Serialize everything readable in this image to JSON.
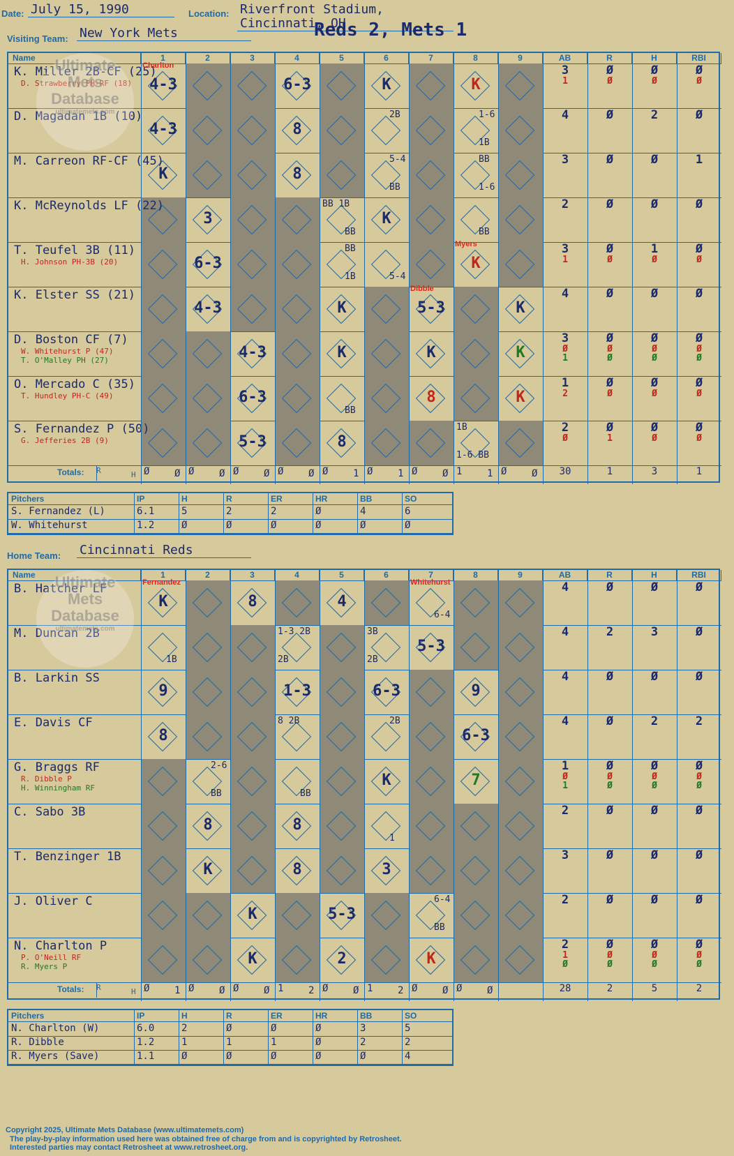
{
  "header": {
    "date_label": "Date:",
    "date": "July 15, 1990",
    "location_label": "Location:",
    "location": "Riverfront Stadium, Cincinnati, OH",
    "visiting_label": "Visiting Team:",
    "visiting_team": "New York Mets",
    "home_label": "Home Team:",
    "home_team": "Cincinnati Reds",
    "result": "Reds 2, Mets 1"
  },
  "columns": {
    "name": "Name",
    "innings": [
      "1",
      "2",
      "3",
      "4",
      "5",
      "6",
      "7",
      "8",
      "9"
    ],
    "stats": [
      "AB",
      "R",
      "H",
      "RBI"
    ]
  },
  "totals_label": "Totals:",
  "totals_r": "R",
  "totals_h": "H",
  "visitors": {
    "players": [
      {
        "name": "K. Miller 2B-CF (25)",
        "subs": [
          {
            "text": "D. Strawberry PH-RF (18)",
            "c": "red"
          }
        ],
        "stats": [
          [
            "3",
            "1"
          ],
          [
            "Ø",
            "Ø"
          ],
          [
            "Ø",
            "Ø"
          ],
          [
            "Ø",
            "Ø"
          ]
        ]
      },
      {
        "name": "D. Magadan 1B (10)",
        "subs": [],
        "stats": [
          [
            "4"
          ],
          [
            "Ø"
          ],
          [
            "2"
          ],
          [
            "Ø"
          ]
        ]
      },
      {
        "name": "M. Carreon RF-CF (45)",
        "subs": [],
        "stats": [
          [
            "3"
          ],
          [
            "Ø"
          ],
          [
            "Ø"
          ],
          [
            "1"
          ]
        ]
      },
      {
        "name": "K. McReynolds LF (22)",
        "subs": [],
        "stats": [
          [
            "2"
          ],
          [
            "Ø"
          ],
          [
            "Ø"
          ],
          [
            "Ø"
          ]
        ]
      },
      {
        "name": "T. Teufel 3B (11)",
        "subs": [
          {
            "text": "H. Johnson PH-3B (20)",
            "c": "red"
          }
        ],
        "stats": [
          [
            "3",
            "1"
          ],
          [
            "Ø",
            "Ø"
          ],
          [
            "1",
            "Ø"
          ],
          [
            "Ø",
            "Ø"
          ]
        ]
      },
      {
        "name": "K. Elster SS (21)",
        "subs": [],
        "stats": [
          [
            "4"
          ],
          [
            "Ø"
          ],
          [
            "Ø"
          ],
          [
            "Ø"
          ]
        ]
      },
      {
        "name": "D. Boston CF (7)",
        "subs": [
          {
            "text": "W. Whitehurst P (47)",
            "c": "red"
          },
          {
            "text": "T. O'Malley PH (27)",
            "c": "grn"
          }
        ],
        "stats": [
          [
            "3",
            "Ø",
            "1"
          ],
          [
            "Ø",
            "Ø",
            "Ø"
          ],
          [
            "Ø",
            "Ø",
            "Ø"
          ],
          [
            "Ø",
            "Ø",
            "Ø"
          ]
        ]
      },
      {
        "name": "O. Mercado C (35)",
        "subs": [
          {
            "text": "T. Hundley PH-C (49)",
            "c": "red"
          }
        ],
        "stats": [
          [
            "1",
            "2"
          ],
          [
            "Ø",
            "Ø"
          ],
          [
            "Ø",
            "Ø"
          ],
          [
            "Ø",
            "Ø"
          ]
        ]
      },
      {
        "name": "S. Fernandez P (50)",
        "subs": [
          {
            "text": "G. Jefferies 2B (9)",
            "c": "red"
          }
        ],
        "stats": [
          [
            "2",
            "Ø"
          ],
          [
            "Ø",
            "1"
          ],
          [
            "Ø",
            "Ø"
          ],
          [
            "Ø",
            "Ø"
          ]
        ]
      }
    ],
    "plays": [
      {
        "r": 0,
        "i": 0,
        "t": "4-3"
      },
      {
        "r": 0,
        "i": 3,
        "t": "6-3"
      },
      {
        "r": 0,
        "i": 5,
        "t": "K"
      },
      {
        "r": 0,
        "i": 7,
        "t": "K",
        "c": "red"
      },
      {
        "r": 1,
        "i": 0,
        "t": "4-3"
      },
      {
        "r": 1,
        "i": 3,
        "t": "8"
      },
      {
        "r": 2,
        "i": 0,
        "t": "K"
      },
      {
        "r": 2,
        "i": 3,
        "t": "8"
      },
      {
        "r": 3,
        "i": 1,
        "t": "3"
      },
      {
        "r": 3,
        "i": 5,
        "t": "K"
      },
      {
        "r": 4,
        "i": 1,
        "t": "6-3"
      },
      {
        "r": 4,
        "i": 7,
        "t": "K",
        "c": "red"
      },
      {
        "r": 5,
        "i": 1,
        "t": "4-3"
      },
      {
        "r": 5,
        "i": 4,
        "t": "K"
      },
      {
        "r": 5,
        "i": 6,
        "t": "5-3"
      },
      {
        "r": 5,
        "i": 8,
        "t": "K"
      },
      {
        "r": 6,
        "i": 2,
        "t": "4-3"
      },
      {
        "r": 6,
        "i": 4,
        "t": "K"
      },
      {
        "r": 6,
        "i": 6,
        "t": "K"
      },
      {
        "r": 6,
        "i": 8,
        "t": "K",
        "c": "grn"
      },
      {
        "r": 7,
        "i": 2,
        "t": "6-3"
      },
      {
        "r": 7,
        "i": 6,
        "t": "8",
        "c": "red"
      },
      {
        "r": 7,
        "i": 8,
        "t": "K",
        "c": "red"
      },
      {
        "r": 8,
        "i": 2,
        "t": "5-3"
      },
      {
        "r": 8,
        "i": 4,
        "t": "8"
      }
    ],
    "minis": [
      {
        "r": 1,
        "i": 5,
        "t": "2B",
        "pos": "tr"
      },
      {
        "r": 1,
        "i": 7,
        "t": "1-6",
        "pos": "tr"
      },
      {
        "r": 1,
        "i": 7,
        "t": "1B",
        "pos": "br"
      },
      {
        "r": 2,
        "i": 5,
        "t": "5-4",
        "pos": "tr"
      },
      {
        "r": 2,
        "i": 5,
        "t": "BB",
        "pos": "br"
      },
      {
        "r": 2,
        "i": 7,
        "t": "BB",
        "pos": "tr"
      },
      {
        "r": 2,
        "i": 7,
        "t": "1-6",
        "pos": "br"
      },
      {
        "r": 3,
        "i": 4,
        "t": "BB 1B",
        "pos": "tl"
      },
      {
        "r": 3,
        "i": 4,
        "t": "BB",
        "pos": "br"
      },
      {
        "r": 3,
        "i": 7,
        "t": "BB",
        "pos": "br"
      },
      {
        "r": 4,
        "i": 4,
        "t": "BB",
        "pos": "tr"
      },
      {
        "r": 4,
        "i": 4,
        "t": "1B",
        "pos": "br"
      },
      {
        "r": 4,
        "i": 5,
        "t": "5-4",
        "pos": "br"
      },
      {
        "r": 7,
        "i": 4,
        "t": "BB",
        "pos": "br"
      },
      {
        "r": 8,
        "i": 7,
        "t": "1B",
        "pos": "tl"
      },
      {
        "r": 8,
        "i": 7,
        "t": "1-6 BB",
        "pos": "bl"
      }
    ],
    "pitch_changes": [
      {
        "r": 0,
        "i": 0,
        "t": "Charlton"
      },
      {
        "r": 4,
        "i": 7,
        "t": "Myers"
      },
      {
        "r": 5,
        "i": 6,
        "t": "Dibble"
      }
    ],
    "totals": [
      [
        "Ø",
        "Ø"
      ],
      [
        "Ø",
        "Ø"
      ],
      [
        "Ø",
        "Ø"
      ],
      [
        "Ø",
        "Ø"
      ],
      [
        "Ø",
        "1"
      ],
      [
        "Ø",
        "1"
      ],
      [
        "Ø",
        "Ø"
      ],
      [
        "1",
        "1"
      ],
      [
        "Ø",
        "Ø"
      ]
    ],
    "total_stats": [
      "30",
      "1",
      "3",
      "1"
    ]
  },
  "home": {
    "players": [
      {
        "name": "B. Hatcher LF",
        "subs": [],
        "stats": [
          [
            "4"
          ],
          [
            "Ø"
          ],
          [
            "Ø"
          ],
          [
            "Ø"
          ]
        ]
      },
      {
        "name": "M. Duncan 2B",
        "subs": [],
        "stats": [
          [
            "4"
          ],
          [
            "2"
          ],
          [
            "3"
          ],
          [
            "Ø"
          ]
        ]
      },
      {
        "name": "B. Larkin SS",
        "subs": [],
        "stats": [
          [
            "4"
          ],
          [
            "Ø"
          ],
          [
            "Ø"
          ],
          [
            "Ø"
          ]
        ]
      },
      {
        "name": "E. Davis CF",
        "subs": [],
        "stats": [
          [
            "4"
          ],
          [
            "Ø"
          ],
          [
            "2"
          ],
          [
            "2"
          ]
        ]
      },
      {
        "name": "G. Braggs RF",
        "subs": [
          {
            "text": "R. Dibble P",
            "c": "red"
          },
          {
            "text": "H. Winningham RF",
            "c": "grn"
          }
        ],
        "stats": [
          [
            "1",
            "Ø",
            "1"
          ],
          [
            "Ø",
            "Ø",
            "Ø"
          ],
          [
            "Ø",
            "Ø",
            "Ø"
          ],
          [
            "Ø",
            "Ø",
            "Ø"
          ]
        ]
      },
      {
        "name": "C. Sabo 3B",
        "subs": [],
        "stats": [
          [
            "2"
          ],
          [
            "Ø"
          ],
          [
            "Ø"
          ],
          [
            "Ø"
          ]
        ]
      },
      {
        "name": "T. Benzinger 1B",
        "subs": [],
        "stats": [
          [
            "3"
          ],
          [
            "Ø"
          ],
          [
            "Ø"
          ],
          [
            "Ø"
          ]
        ]
      },
      {
        "name": "J. Oliver C",
        "subs": [],
        "stats": [
          [
            "2"
          ],
          [
            "Ø"
          ],
          [
            "Ø"
          ],
          [
            "Ø"
          ]
        ]
      },
      {
        "name": "N. Charlton P",
        "subs": [
          {
            "text": "P. O'Neill RF",
            "c": "red"
          },
          {
            "text": "R. Myers P",
            "c": "grn"
          }
        ],
        "stats": [
          [
            "2",
            "1",
            "Ø"
          ],
          [
            "Ø",
            "Ø",
            "Ø"
          ],
          [
            "Ø",
            "Ø",
            "Ø"
          ],
          [
            "Ø",
            "Ø",
            "Ø"
          ]
        ]
      }
    ],
    "plays": [
      {
        "r": 0,
        "i": 0,
        "t": "K"
      },
      {
        "r": 0,
        "i": 2,
        "t": "8"
      },
      {
        "r": 0,
        "i": 4,
        "t": "4"
      },
      {
        "r": 1,
        "i": 6,
        "t": "5-3"
      },
      {
        "r": 2,
        "i": 0,
        "t": "9"
      },
      {
        "r": 2,
        "i": 3,
        "t": "1-3"
      },
      {
        "r": 2,
        "i": 5,
        "t": "6-3"
      },
      {
        "r": 2,
        "i": 7,
        "t": "9"
      },
      {
        "r": 3,
        "i": 0,
        "t": "8"
      },
      {
        "r": 3,
        "i": 7,
        "t": "6-3"
      },
      {
        "r": 4,
        "i": 5,
        "t": "K"
      },
      {
        "r": 4,
        "i": 7,
        "t": "7",
        "c": "grn"
      },
      {
        "r": 5,
        "i": 1,
        "t": "8"
      },
      {
        "r": 5,
        "i": 3,
        "t": "8"
      },
      {
        "r": 6,
        "i": 1,
        "t": "K"
      },
      {
        "r": 6,
        "i": 3,
        "t": "8"
      },
      {
        "r": 6,
        "i": 5,
        "t": "3"
      },
      {
        "r": 7,
        "i": 2,
        "t": "K"
      },
      {
        "r": 7,
        "i": 4,
        "t": "5-3"
      },
      {
        "r": 8,
        "i": 2,
        "t": "K"
      },
      {
        "r": 8,
        "i": 4,
        "t": "2"
      },
      {
        "r": 8,
        "i": 6,
        "t": "K",
        "c": "red"
      }
    ],
    "minis": [
      {
        "r": 0,
        "i": 6,
        "t": "6-4",
        "pos": "br"
      },
      {
        "r": 1,
        "i": 0,
        "t": "1B",
        "pos": "br"
      },
      {
        "r": 1,
        "i": 3,
        "t": "1-3 2B",
        "pos": "tl"
      },
      {
        "r": 1,
        "i": 3,
        "t": "2B",
        "pos": "bl"
      },
      {
        "r": 1,
        "i": 5,
        "t": "3B",
        "pos": "tl"
      },
      {
        "r": 1,
        "i": 5,
        "t": "2B",
        "pos": "bl"
      },
      {
        "r": 3,
        "i": 3,
        "t": "8  2B",
        "pos": "tl"
      },
      {
        "r": 3,
        "i": 5,
        "t": "2B",
        "pos": "tr"
      },
      {
        "r": 4,
        "i": 1,
        "t": "2-6",
        "pos": "tr"
      },
      {
        "r": 4,
        "i": 1,
        "t": "BB",
        "pos": "br"
      },
      {
        "r": 4,
        "i": 3,
        "t": "BB",
        "pos": "br"
      },
      {
        "r": 5,
        "i": 5,
        "t": "1",
        "pos": "br"
      },
      {
        "r": 7,
        "i": 6,
        "t": "6-4",
        "pos": "tr"
      },
      {
        "r": 7,
        "i": 6,
        "t": "BB",
        "pos": "br"
      }
    ],
    "pitch_changes": [
      {
        "r": 0,
        "i": 0,
        "t": "Fernandez"
      },
      {
        "r": 0,
        "i": 6,
        "t": "Whitehurst"
      }
    ],
    "totals": [
      [
        "Ø",
        "1"
      ],
      [
        "Ø",
        "Ø"
      ],
      [
        "Ø",
        "Ø"
      ],
      [
        "1",
        "2"
      ],
      [
        "Ø",
        "Ø"
      ],
      [
        "1",
        "2"
      ],
      [
        "Ø",
        "Ø"
      ],
      [
        "Ø",
        "Ø"
      ],
      [
        "",
        ""
      ]
    ],
    "total_stats": [
      "28",
      "2",
      "5",
      "2"
    ]
  },
  "pitching_headers": [
    "Pitchers",
    "IP",
    "H",
    "R",
    "ER",
    "HR",
    "BB",
    "SO"
  ],
  "visitor_pitchers": [
    [
      "S. Fernandez (L)",
      "6.1",
      "5",
      "2",
      "2",
      "Ø",
      "4",
      "6"
    ],
    [
      "W. Whitehurst",
      "1.2",
      "Ø",
      "Ø",
      "Ø",
      "Ø",
      "Ø",
      "Ø"
    ]
  ],
  "home_pitchers": [
    [
      "N. Charlton (W)",
      "6.0",
      "2",
      "Ø",
      "Ø",
      "Ø",
      "3",
      "5"
    ],
    [
      "R. Dibble",
      "1.2",
      "1",
      "1",
      "1",
      "Ø",
      "2",
      "2"
    ],
    [
      "R. Myers (Save)",
      "1.1",
      "Ø",
      "Ø",
      "Ø",
      "Ø",
      "Ø",
      "4"
    ]
  ],
  "watermark": [
    "Ultimate",
    "Mets",
    "Database",
    "ultimatemets.com"
  ],
  "footer": [
    "Copyright 2025, Ultimate Mets Database (www.ultimatemets.com)",
    "The play-by-play information used here was obtained free of charge from and is copyrighted by Retrosheet.",
    "Interested parties may contact Retrosheet at www.retrosheet.org."
  ],
  "colors": {
    "ink": "#1b2a6b",
    "line": "#1f6aa8",
    "dark_cell": "#8e8a77",
    "paper": "#d6c99c",
    "red": "#c0271b",
    "green": "#1f7a1f"
  }
}
